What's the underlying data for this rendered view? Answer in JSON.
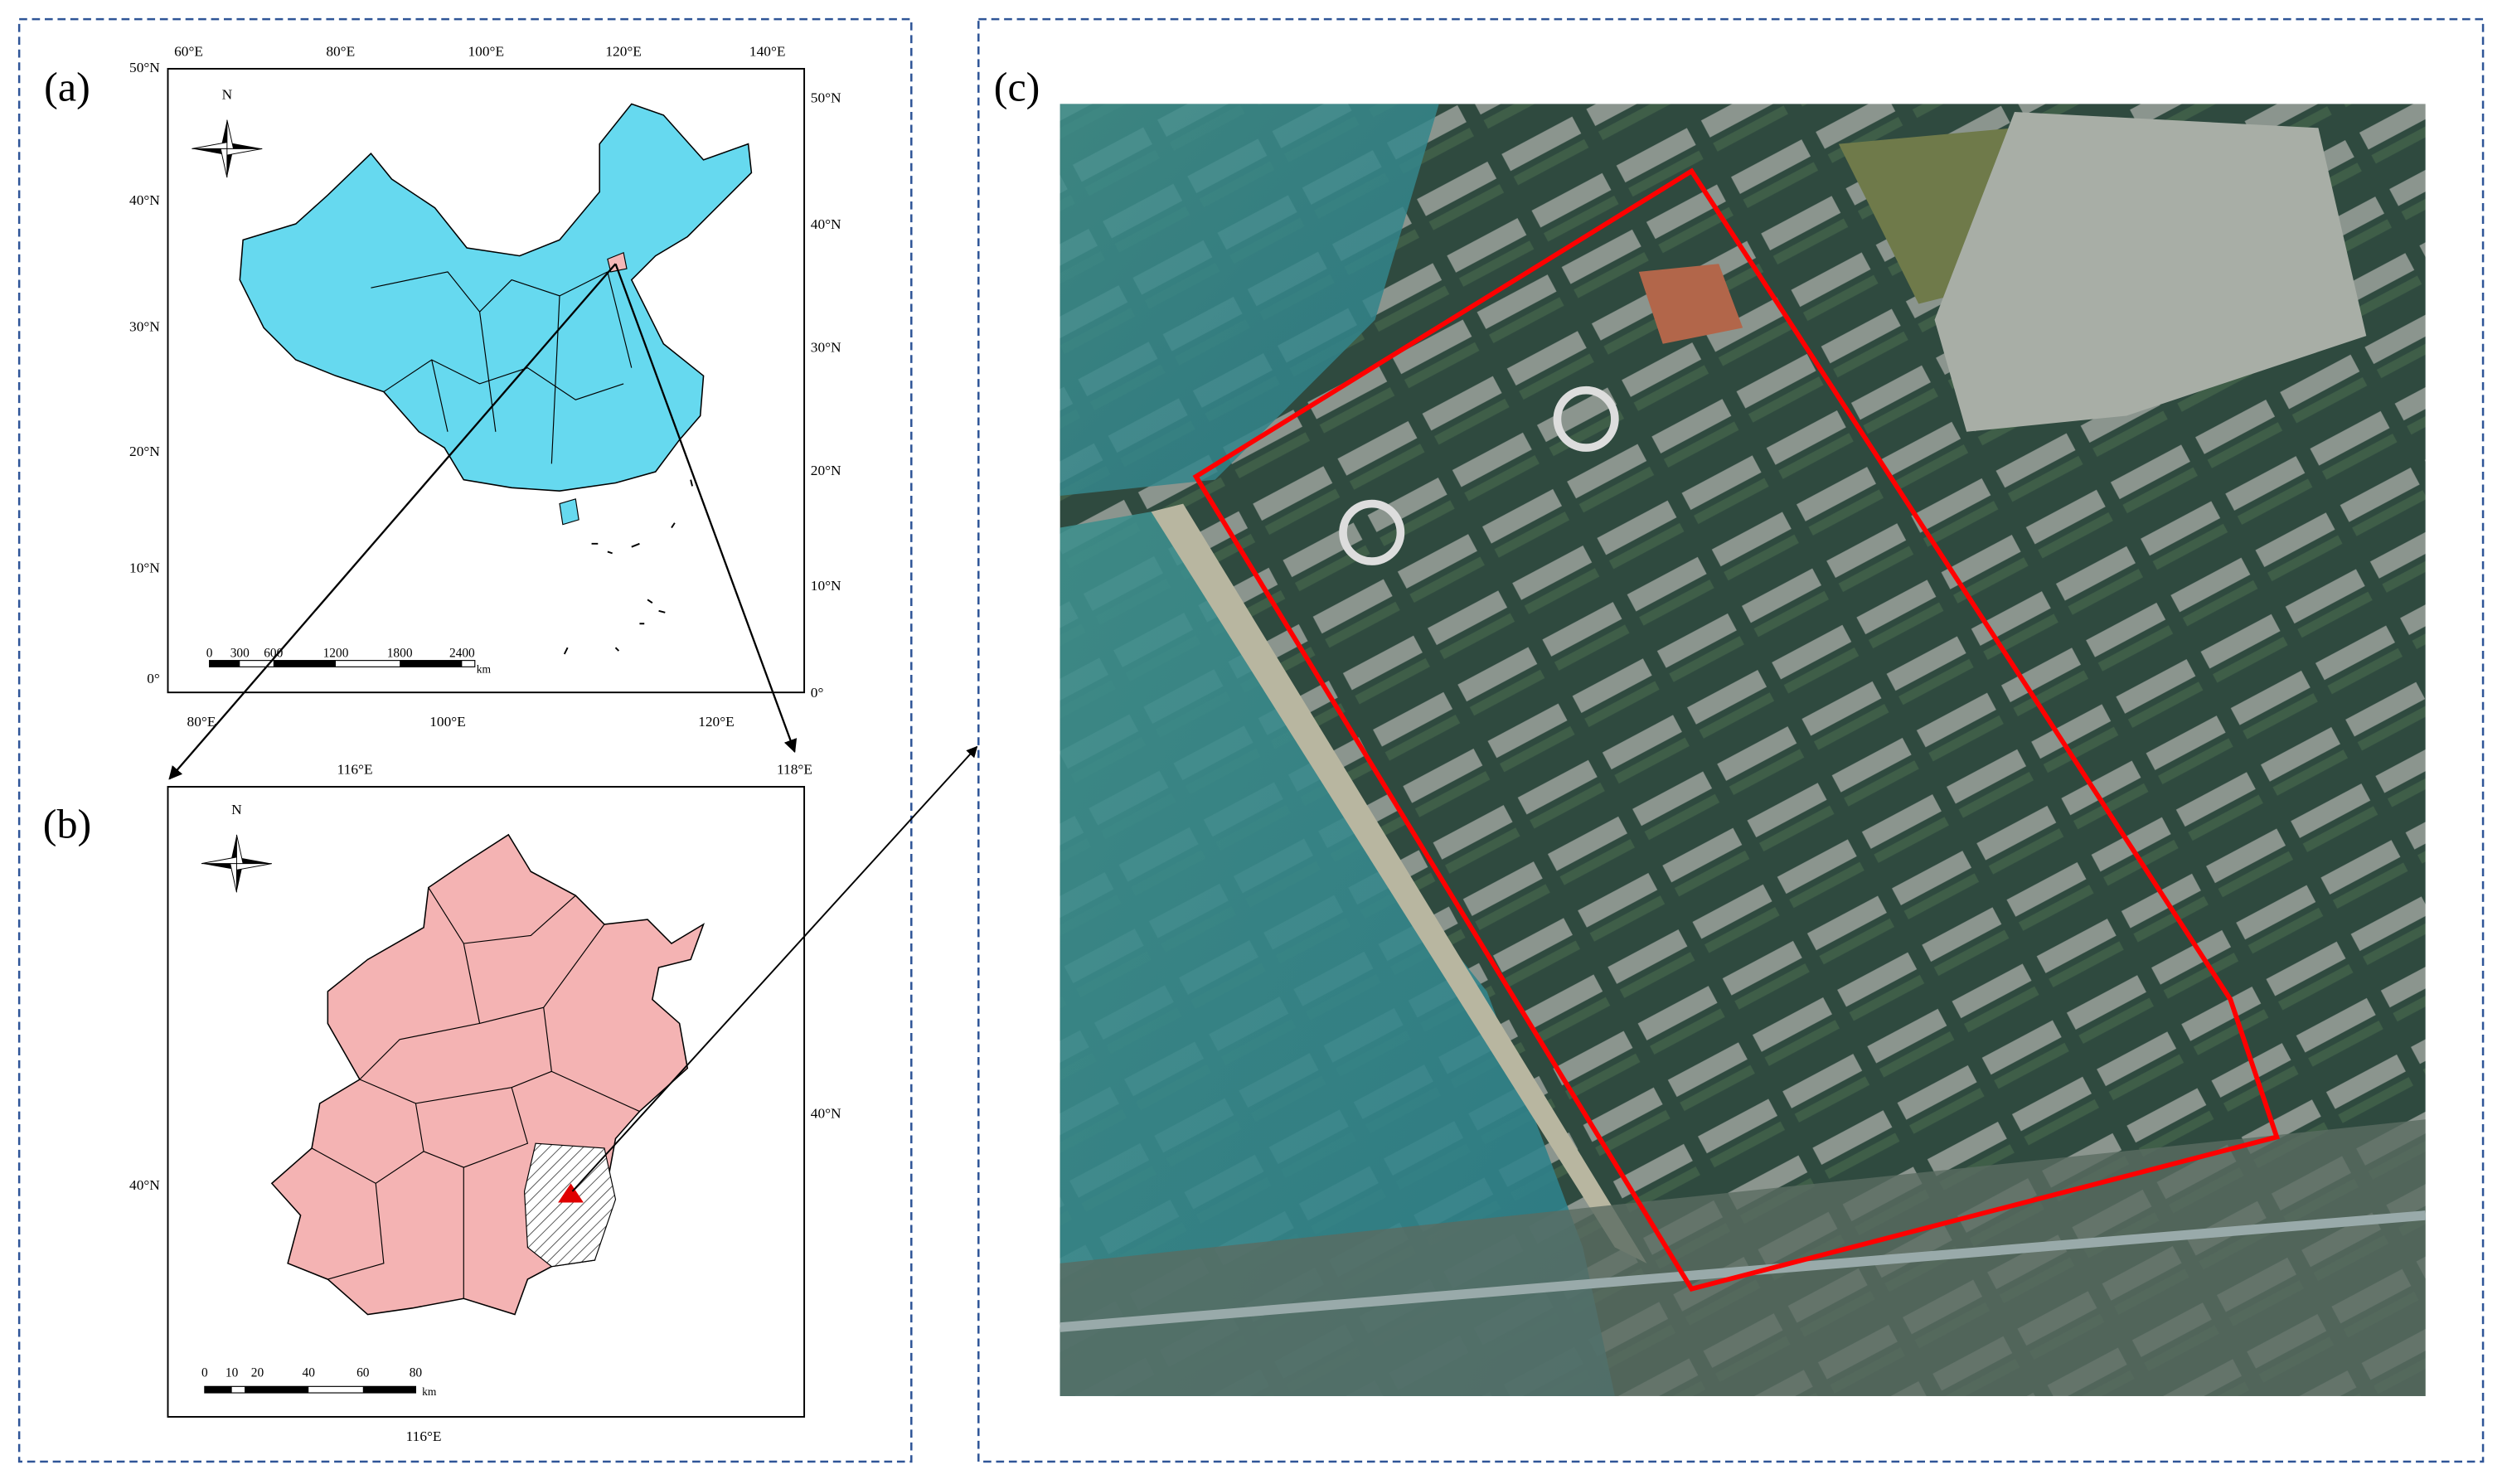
{
  "panel_a": {
    "label": "(a)",
    "north": "N",
    "top_ticks": [
      "60°E",
      "80°E",
      "100°E",
      "120°E",
      "140°E"
    ],
    "left_ticks": [
      "50°N",
      "40°N",
      "30°N",
      "20°N",
      "10°N",
      "0°"
    ],
    "right_ticks": [
      "50°N",
      "40°N",
      "30°N",
      "20°N",
      "10°N",
      "0°"
    ],
    "bottom_ticks": [
      "80°E",
      "100°E",
      "120°E"
    ],
    "scale_labels": [
      "0",
      "300",
      "600",
      "1200",
      "1800",
      "2400"
    ],
    "scale_unit": "km"
  },
  "panel_b": {
    "label": "(b)",
    "north": "N",
    "top_ticks": [
      "116°E",
      "118°E"
    ],
    "left_ticks": [
      "40°N"
    ],
    "right_ticks": [
      "40°N"
    ],
    "bottom_ticks": [
      "116°E"
    ],
    "scale_labels": [
      "0",
      "10",
      "20",
      "40",
      "60",
      "80"
    ],
    "scale_unit": "km"
  },
  "panel_c": {
    "label": "(c)"
  }
}
